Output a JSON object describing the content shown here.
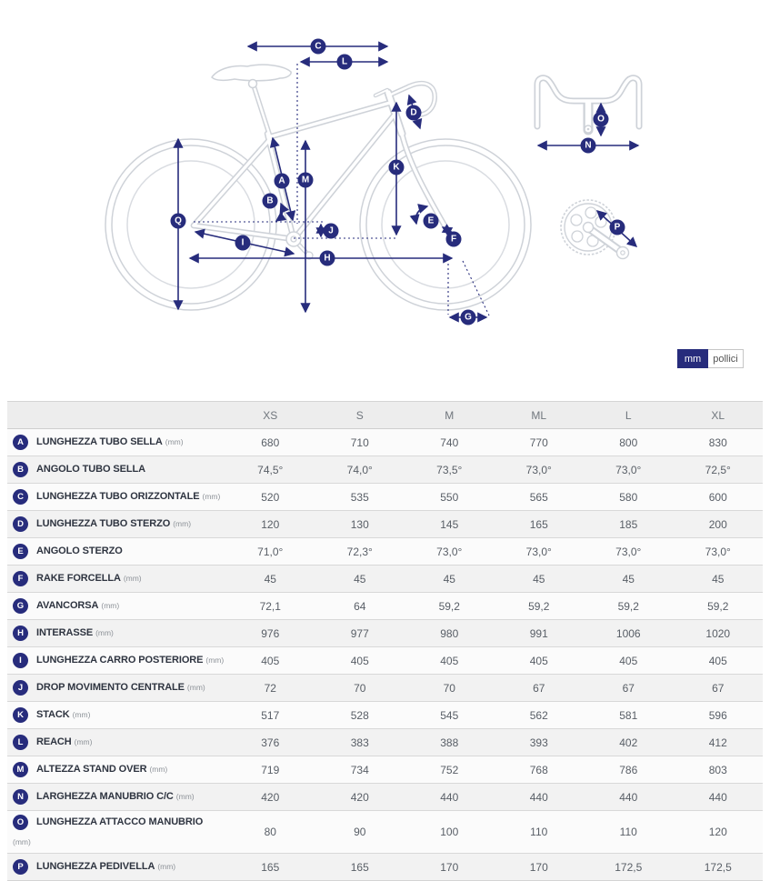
{
  "diagram": {
    "badges": {
      "a": "A",
      "b": "B",
      "c": "C",
      "d": "D",
      "e": "E",
      "f": "F",
      "g": "G",
      "h": "H",
      "i": "I",
      "j": "J",
      "k": "K",
      "l": "L",
      "m": "M",
      "n": "N",
      "o": "O",
      "p": "P",
      "q": "Q"
    },
    "colors": {
      "accent_navy": "#272c7c",
      "line_gray": "#ced2d8"
    }
  },
  "unit_toggle": {
    "options": [
      {
        "label": "mm",
        "selected": true
      },
      {
        "label": "pollici",
        "selected": false
      }
    ]
  },
  "table": {
    "columns": [
      "XS",
      "S",
      "M",
      "ML",
      "L",
      "XL"
    ],
    "rows": [
      {
        "letter": "A",
        "label": "LUNGHEZZA TUBO SELLA",
        "unit": "(mm)",
        "values": [
          "680",
          "710",
          "740",
          "770",
          "800",
          "830"
        ]
      },
      {
        "letter": "B",
        "label": "ANGOLO TUBO SELLA",
        "unit": "",
        "values": [
          "74,5°",
          "74,0°",
          "73,5°",
          "73,0°",
          "73,0°",
          "72,5°"
        ]
      },
      {
        "letter": "C",
        "label": "LUNGHEZZA TUBO ORIZZONTALE",
        "unit": "(mm)",
        "values": [
          "520",
          "535",
          "550",
          "565",
          "580",
          "600"
        ]
      },
      {
        "letter": "D",
        "label": "LUNGHEZZA TUBO STERZO",
        "unit": "(mm)",
        "values": [
          "120",
          "130",
          "145",
          "165",
          "185",
          "200"
        ]
      },
      {
        "letter": "E",
        "label": "ANGOLO STERZO",
        "unit": "",
        "values": [
          "71,0°",
          "72,3°",
          "73,0°",
          "73,0°",
          "73,0°",
          "73,0°"
        ]
      },
      {
        "letter": "F",
        "label": "RAKE FORCELLA",
        "unit": "(mm)",
        "values": [
          "45",
          "45",
          "45",
          "45",
          "45",
          "45"
        ]
      },
      {
        "letter": "G",
        "label": "AVANCORSA",
        "unit": "(mm)",
        "values": [
          "72,1",
          "64",
          "59,2",
          "59,2",
          "59,2",
          "59,2"
        ]
      },
      {
        "letter": "H",
        "label": "INTERASSE",
        "unit": "(mm)",
        "values": [
          "976",
          "977",
          "980",
          "991",
          "1006",
          "1020"
        ]
      },
      {
        "letter": "I",
        "label": "LUNGHEZZA CARRO POSTERIORE",
        "unit": "(mm)",
        "values": [
          "405",
          "405",
          "405",
          "405",
          "405",
          "405"
        ]
      },
      {
        "letter": "J",
        "label": "DROP MOVIMENTO CENTRALE",
        "unit": "(mm)",
        "values": [
          "72",
          "70",
          "70",
          "67",
          "67",
          "67"
        ]
      },
      {
        "letter": "K",
        "label": "STACK",
        "unit": "(mm)",
        "values": [
          "517",
          "528",
          "545",
          "562",
          "581",
          "596"
        ]
      },
      {
        "letter": "L",
        "label": "REACH",
        "unit": "(mm)",
        "values": [
          "376",
          "383",
          "388",
          "393",
          "402",
          "412"
        ]
      },
      {
        "letter": "M",
        "label": "ALTEZZA STAND OVER",
        "unit": "(mm)",
        "values": [
          "719",
          "734",
          "752",
          "768",
          "786",
          "803"
        ]
      },
      {
        "letter": "N",
        "label": "LARGHEZZA MANUBRIO C/C",
        "unit": "(mm)",
        "values": [
          "420",
          "420",
          "440",
          "440",
          "440",
          "440"
        ]
      },
      {
        "letter": "O",
        "label": "LUNGHEZZA ATTACCO MANUBRIO",
        "unit": "(mm)",
        "unit_on_new_line": true,
        "values": [
          "80",
          "90",
          "100",
          "110",
          "110",
          "120"
        ]
      },
      {
        "letter": "P",
        "label": "LUNGHEZZA PEDIVELLA",
        "unit": "(mm)",
        "values": [
          "165",
          "165",
          "170",
          "170",
          "172,5",
          "172,5"
        ]
      }
    ]
  }
}
